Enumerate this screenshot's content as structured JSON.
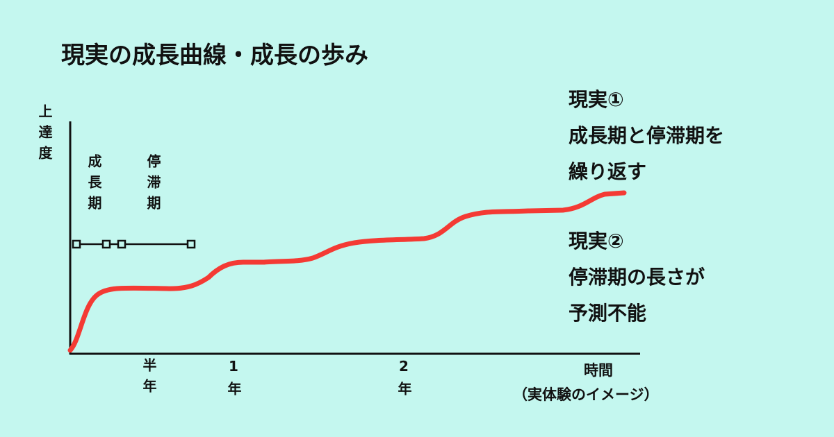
{
  "title": "現実の成長曲線・成長の歩み",
  "y_axis_label": "上達度",
  "phases": [
    "成長期",
    "停滞期"
  ],
  "x_labels": [
    "半年",
    "1年",
    "2年"
  ],
  "x_axis_label": "時間",
  "x_axis_note": "（実体験のイメージ）",
  "notes": [
    {
      "lines": [
        "現実①",
        "成長期と停滞期を",
        "繰り返す"
      ]
    },
    {
      "lines": [
        "現実②",
        "停滞期の長さが",
        "予測不能"
      ]
    }
  ]
}
